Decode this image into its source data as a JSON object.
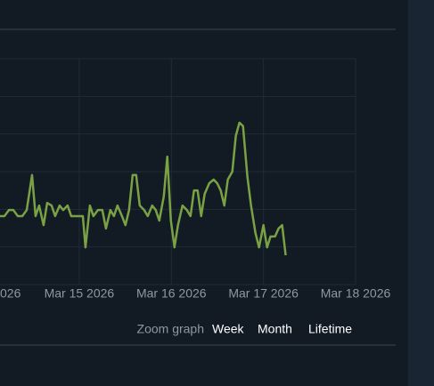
{
  "chart_data": {
    "type": "line",
    "x": [
      14.14,
      14.188,
      14.237,
      14.285,
      14.333,
      14.382,
      14.43,
      14.488,
      14.526,
      14.565,
      14.613,
      14.652,
      14.7,
      14.739,
      14.787,
      14.826,
      14.874,
      14.913,
      14.961,
      15.01,
      15.039,
      15.068,
      15.116,
      15.154,
      15.203,
      15.251,
      15.29,
      15.338,
      15.377,
      15.415,
      15.464,
      15.502,
      15.541,
      15.58,
      15.618,
      15.657,
      15.705,
      15.744,
      15.792,
      15.831,
      15.869,
      15.918,
      15.956,
      15.995,
      16.034,
      16.072,
      16.121,
      16.169,
      16.208,
      16.246,
      16.285,
      16.324,
      16.362,
      16.411,
      16.459,
      16.498,
      16.536,
      16.575,
      16.613,
      16.662,
      16.7,
      16.739,
      16.778,
      16.826,
      16.865,
      16.913,
      16.952,
      17.0,
      17.039,
      17.077,
      17.126,
      17.164,
      17.203,
      17.241
    ],
    "series": [
      {
        "color": "#7aa244",
        "values": [
          1.82,
          1.82,
          1.98,
          1.98,
          1.82,
          1.82,
          1.98,
          2.91,
          1.82,
          2.1,
          1.58,
          2.17,
          2.1,
          1.82,
          2.1,
          1.98,
          2.1,
          1.82,
          1.82,
          1.82,
          1.82,
          0.99,
          2.1,
          1.82,
          1.98,
          1.98,
          1.49,
          1.98,
          1.82,
          2.1,
          1.82,
          1.58,
          1.98,
          2.91,
          2.91,
          2.1,
          1.98,
          1.82,
          2.1,
          1.98,
          1.7,
          2.34,
          3.4,
          1.7,
          0.99,
          1.58,
          2.1,
          1.98,
          1.82,
          2.5,
          2.5,
          1.82,
          2.41,
          2.69,
          2.79,
          2.69,
          2.5,
          2.1,
          2.79,
          3.0,
          3.95,
          4.3,
          4.21,
          2.86,
          2.1,
          1.37,
          0.99,
          1.58,
          0.99,
          1.28,
          1.28,
          1.49,
          1.58,
          0.78
        ]
      }
    ],
    "xlim": [
      14.14,
      18
    ],
    "xticks": [
      {
        "value": 14,
        "label": "026"
      },
      {
        "value": 15,
        "label": "Mar 15 2026"
      },
      {
        "value": 16,
        "label": "Mar 16 2026"
      },
      {
        "value": 17,
        "label": "Mar 17 2026"
      },
      {
        "value": 18,
        "label": "Mar 18 2026"
      }
    ],
    "ylim": [
      0,
      6
    ],
    "grid": true
  },
  "zoom": {
    "label": "Zoom graph",
    "options": [
      "Week",
      "Month",
      "Lifetime"
    ]
  }
}
